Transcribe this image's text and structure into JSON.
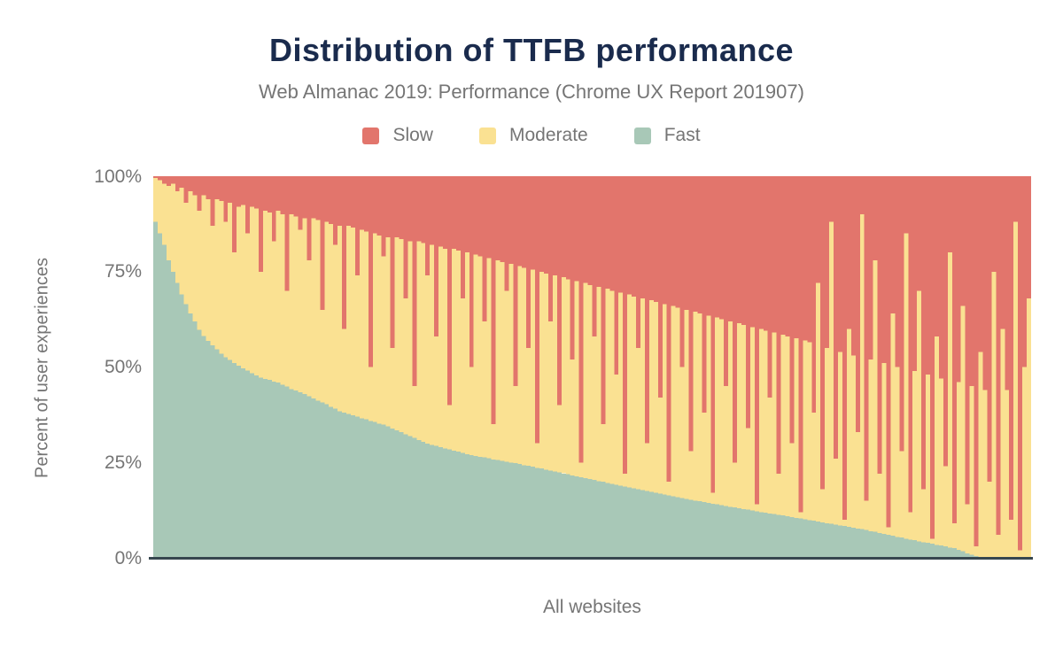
{
  "header": {
    "title": "Distribution of TTFB performance",
    "subtitle": "Web Almanac 2019: Performance (Chrome UX Report 201907)"
  },
  "chart_data": {
    "type": "bar",
    "stacked": true,
    "title": "Distribution of TTFB performance",
    "subtitle": "Web Almanac 2019: Performance (Chrome UX Report 201907)",
    "xlabel": "All websites",
    "ylabel": "Percent of user experiences",
    "ylim": [
      0,
      100
    ],
    "y_ticks": [
      "100%",
      "75%",
      "50%",
      "25%",
      "0%"
    ],
    "grid": false,
    "legend_position": "top",
    "title_color": "#1a2b4d",
    "text_color": "#757575",
    "axis_line_color": "#37474f",
    "series": [
      {
        "name": "Slow",
        "color": "#e2756c"
      },
      {
        "name": "Moderate",
        "color": "#fae192"
      },
      {
        "name": "Fast",
        "color": "#a8c8b7"
      }
    ],
    "n_columns": 200,
    "columns": {
      "fast_pct": [
        88,
        85,
        82,
        78,
        75,
        72,
        69,
        66.5,
        64,
        62,
        59.7,
        58.1,
        56.8,
        55.7,
        54.6,
        53.5,
        52.6,
        51.9,
        51.1,
        50.4,
        49.6,
        49.1,
        48.4,
        47.8,
        47.2,
        46.9,
        46.6,
        46.2,
        45.9,
        45.4,
        44.9,
        44.2,
        43.9,
        43.4,
        42.9,
        42.3,
        41.8,
        41.2,
        40.7,
        40.2,
        39.6,
        39.1,
        38.4,
        38.1,
        37.7,
        37.4,
        37,
        36.6,
        36.3,
        35.9,
        35.6,
        35.2,
        34.9,
        34.4,
        33.9,
        33.4,
        32.9,
        32.4,
        31.9,
        31.4,
        30.9,
        30.4,
        29.9,
        29.6,
        29.3,
        29,
        28.7,
        28.4,
        28.1,
        27.8,
        27.5,
        27.2,
        26.9,
        26.7,
        26.5,
        26.3,
        26.1,
        25.8,
        25.6,
        25.4,
        25.2,
        25,
        24.8,
        24.6,
        24.3,
        24.1,
        23.9,
        23.6,
        23.4,
        23.1,
        22.9,
        22.6,
        22.4,
        22.1,
        21.9,
        21.6,
        21.4,
        21.1,
        20.9,
        20.6,
        20.4,
        20.1,
        19.9,
        19.6,
        19.4,
        19.1,
        18.9,
        18.7,
        18.4,
        18.2,
        18,
        17.7,
        17.5,
        17.3,
        17,
        16.8,
        16.6,
        16.4,
        16.1,
        15.9,
        15.7,
        15.4,
        15.2,
        15,
        14.8,
        14.6,
        14.4,
        14.2,
        14,
        13.8,
        13.6,
        13.4,
        13.2,
        13,
        12.8,
        12.6,
        12.4,
        12.2,
        12,
        11.8,
        11.6,
        11.5,
        11.3,
        11.1,
        10.9,
        10.7,
        10.5,
        10.3,
        10.1,
        9.9,
        9.7,
        9.5,
        9.3,
        9.1,
        8.9,
        8.7,
        8.5,
        8.3,
        8.1,
        7.9,
        7.7,
        7.5,
        7.3,
        7,
        6.8,
        6.5,
        6.3,
        6,
        5.8,
        5.5,
        5.3,
        5,
        4.8,
        4.6,
        4.3,
        4.1,
        3.9,
        3.7,
        3.4,
        3.2,
        3,
        2.7,
        2.5,
        2.1,
        1.7,
        1.2,
        0.8,
        0.5,
        0.2,
        0,
        0,
        0,
        0,
        0,
        0,
        0,
        0,
        0,
        0,
        0
      ],
      "fast_plus_moderate_pct": [
        99.5,
        99,
        98,
        97.5,
        98,
        96,
        97,
        93,
        96,
        95,
        91,
        95,
        94,
        87,
        94,
        93.5,
        88,
        93,
        80,
        92,
        92.5,
        85,
        92,
        91.5,
        75,
        91,
        90.5,
        83,
        91,
        90,
        70,
        90,
        89.5,
        86,
        89,
        78,
        89,
        88.5,
        65,
        88,
        87.5,
        82,
        87,
        60,
        87,
        86.5,
        74,
        86,
        85.5,
        50,
        85,
        84.5,
        79,
        84,
        55,
        84,
        83.5,
        68,
        83,
        45,
        83,
        82.5,
        74,
        82,
        58,
        81.5,
        81,
        40,
        81,
        80.5,
        68,
        80,
        50,
        79.5,
        79,
        62,
        78.5,
        35,
        78,
        77.5,
        70,
        77,
        45,
        76.5,
        76,
        55,
        75.5,
        30,
        75,
        74.5,
        62,
        74,
        40,
        73.5,
        73,
        52,
        72.5,
        25,
        72,
        71.5,
        58,
        71,
        35,
        70.5,
        70,
        48,
        69.5,
        22,
        69,
        68.5,
        55,
        68,
        30,
        67.5,
        67,
        42,
        66.5,
        20,
        66,
        65.5,
        50,
        65,
        28,
        64.5,
        64,
        38,
        63.5,
        17,
        63,
        62.5,
        45,
        62,
        25,
        61.5,
        61,
        34,
        60.5,
        14,
        60,
        59.5,
        42,
        59,
        22,
        58.5,
        58,
        30,
        57.5,
        12,
        57,
        56.5,
        38,
        72,
        18,
        55,
        88,
        26,
        54,
        10,
        60,
        53,
        33,
        90,
        15,
        52,
        78,
        22,
        51,
        8,
        64,
        50,
        28,
        85,
        12,
        49,
        70,
        18,
        48,
        5,
        58,
        47,
        24,
        80,
        9,
        46,
        66,
        14,
        45,
        3,
        54,
        44,
        20,
        75,
        6,
        60,
        44,
        10,
        88,
        2,
        50,
        68
      ]
    }
  }
}
